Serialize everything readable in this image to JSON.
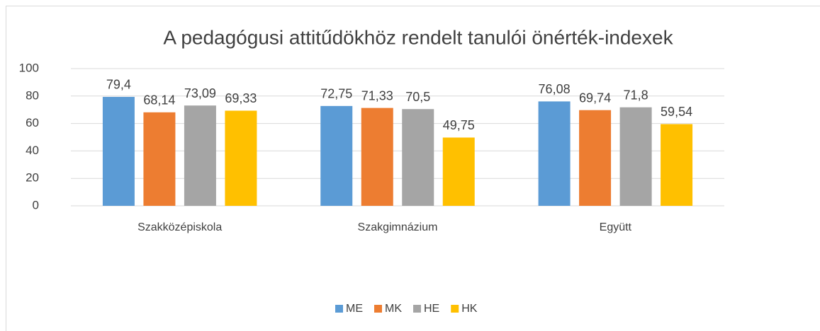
{
  "chart_data": {
    "type": "bar",
    "title": "A pedagógusi attitűdökhöz rendelt tanulói önérték-indexek",
    "categories": [
      "Szakközépiskola",
      "Szakgimnázium",
      "Együtt"
    ],
    "series": [
      {
        "name": "ME",
        "color": "#5b9bd5",
        "values": [
          79.4,
          72.75,
          76.08
        ],
        "value_labels": [
          "79,4",
          "72,75",
          "76,08"
        ]
      },
      {
        "name": "MK",
        "color": "#ed7d31",
        "values": [
          68.14,
          71.33,
          69.74
        ],
        "value_labels": [
          "68,14",
          "71,33",
          "69,74"
        ]
      },
      {
        "name": "HE",
        "color": "#a5a5a5",
        "values": [
          73.09,
          70.5,
          71.8
        ],
        "value_labels": [
          "73,09",
          "70,5",
          "71,8"
        ]
      },
      {
        "name": "HK",
        "color": "#ffc000",
        "values": [
          69.33,
          49.75,
          59.54
        ],
        "value_labels": [
          "69,33",
          "49,75",
          "59,54"
        ]
      }
    ],
    "ylim": [
      0,
      100
    ],
    "yticks": [
      0,
      20,
      40,
      60,
      80,
      100
    ],
    "grid": true,
    "legend": "bottom"
  }
}
